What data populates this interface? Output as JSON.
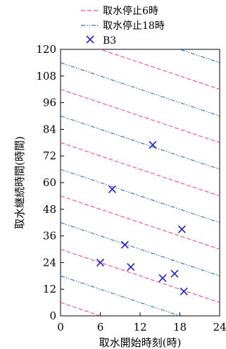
{
  "chart_data": {
    "type": "scatter",
    "title": "",
    "xlabel": "取水開始時刻(時)",
    "ylabel": "取水継続時間(時間)",
    "xlim": [
      0,
      24
    ],
    "ylim": [
      0,
      120
    ],
    "xticks": [
      0,
      6,
      12,
      18,
      24
    ],
    "yticks": [
      0,
      12,
      24,
      36,
      48,
      60,
      72,
      84,
      96,
      108,
      120
    ],
    "grid": false,
    "legend_position": "top",
    "legend": [
      {
        "name": "取水停止6時",
        "style": "dash",
        "color": "#ee4d8c"
      },
      {
        "name": "取水停止18時",
        "style": "dashdotdot",
        "color": "#2f6db8"
      },
      {
        "name": "B3",
        "style": "x-marker",
        "color": "#1f1fd6"
      }
    ],
    "series": [
      {
        "name": "取水停止6時",
        "kind": "line",
        "color": "#ee4d8c",
        "lines": [
          {
            "x": [
              0,
              24
            ],
            "y": [
              6,
              -18
            ]
          },
          {
            "x": [
              0,
              24
            ],
            "y": [
              30,
              6
            ]
          },
          {
            "x": [
              0,
              24
            ],
            "y": [
              54,
              30
            ]
          },
          {
            "x": [
              0,
              24
            ],
            "y": [
              78,
              54
            ]
          },
          {
            "x": [
              0,
              24
            ],
            "y": [
              102,
              78
            ]
          },
          {
            "x": [
              0,
              24
            ],
            "y": [
              126,
              102
            ]
          }
        ]
      },
      {
        "name": "取水停止18時",
        "kind": "line",
        "color": "#2f6db8",
        "lines": [
          {
            "x": [
              0,
              24
            ],
            "y": [
              18,
              -6
            ]
          },
          {
            "x": [
              0,
              24
            ],
            "y": [
              42,
              18
            ]
          },
          {
            "x": [
              0,
              24
            ],
            "y": [
              66,
              42
            ]
          },
          {
            "x": [
              0,
              24
            ],
            "y": [
              90,
              66
            ]
          },
          {
            "x": [
              0,
              24
            ],
            "y": [
              114,
              90
            ]
          },
          {
            "x": [
              0,
              24
            ],
            "y": [
              138,
              114
            ]
          }
        ]
      },
      {
        "name": "B3",
        "kind": "scatter",
        "color": "#1f1fd6",
        "points": [
          {
            "x": 6.0,
            "y": 24
          },
          {
            "x": 7.8,
            "y": 57
          },
          {
            "x": 9.7,
            "y": 32
          },
          {
            "x": 10.6,
            "y": 22
          },
          {
            "x": 13.9,
            "y": 77
          },
          {
            "x": 15.4,
            "y": 17
          },
          {
            "x": 17.2,
            "y": 19
          },
          {
            "x": 18.3,
            "y": 39
          },
          {
            "x": 18.6,
            "y": 11
          }
        ]
      }
    ]
  }
}
